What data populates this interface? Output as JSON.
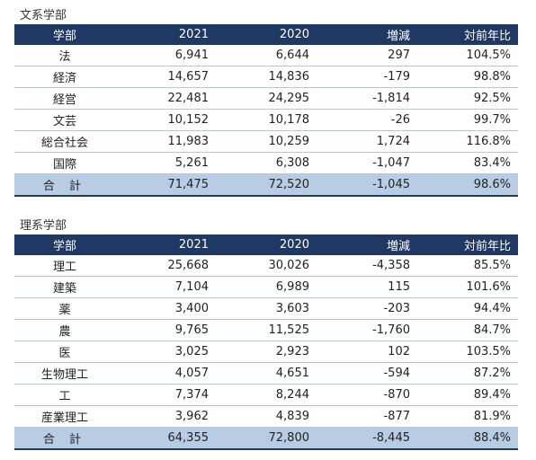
{
  "bunkei": {
    "title": "文系学部",
    "headers": [
      "学部",
      "2021",
      "2020",
      "増減",
      "対前年比"
    ],
    "rows": [
      [
        "法",
        "6,941",
        "6,644",
        "297",
        "104.5%"
      ],
      [
        "経済",
        "14,657",
        "14,836",
        "-179",
        "98.8%"
      ],
      [
        "経営",
        "22,481",
        "24,295",
        "-1,814",
        "92.5%"
      ],
      [
        "文芸",
        "10,152",
        "10,178",
        "-26",
        "99.7%"
      ],
      [
        "総合社会",
        "11,983",
        "10,259",
        "1,724",
        "116.8%"
      ],
      [
        "国際",
        "5,261",
        "6,308",
        "-1,047",
        "83.4%"
      ]
    ],
    "total": [
      "合 計",
      "71,475",
      "72,520",
      "-1,045",
      "98.6%"
    ]
  },
  "rikei": {
    "title": "理系学部",
    "headers": [
      "学部",
      "2021",
      "2020",
      "増減",
      "対前年比"
    ],
    "rows": [
      [
        "理工",
        "25,668",
        "30,026",
        "-4,358",
        "85.5%"
      ],
      [
        "建築",
        "7,104",
        "6,989",
        "115",
        "101.6%"
      ],
      [
        "薬",
        "3,400",
        "3,603",
        "-203",
        "94.4%"
      ],
      [
        "農",
        "9,765",
        "11,525",
        "-1,760",
        "84.7%"
      ],
      [
        "医",
        "3,025",
        "2,923",
        "102",
        "103.5%"
      ],
      [
        "生物理工",
        "4,057",
        "4,651",
        "-594",
        "87.2%"
      ],
      [
        "工",
        "7,374",
        "8,244",
        "-870",
        "89.4%"
      ],
      [
        "産業理工",
        "3,962",
        "4,839",
        "-877",
        "81.9%"
      ]
    ],
    "total": [
      "合 計",
      "64,355",
      "72,800",
      "-8,445",
      "88.4%"
    ]
  }
}
